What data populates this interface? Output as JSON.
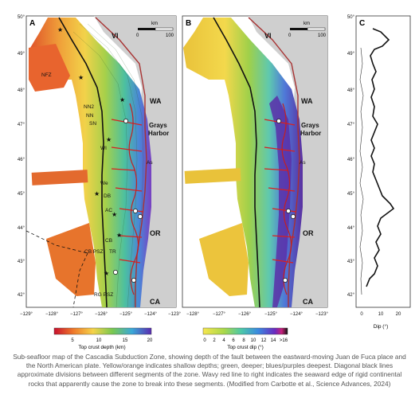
{
  "panels": {
    "a": {
      "letter": "A",
      "region_labels": [
        "VI",
        "WA",
        "Grays\nHarbor",
        "OR",
        "CA"
      ],
      "segment_labels": [
        "NFZ",
        "NN2",
        "NN",
        "SN",
        "WI",
        "As",
        "We",
        "DB",
        "AC",
        "CB",
        "TR",
        "CB PSZ",
        "RG PSZ"
      ],
      "scale": {
        "unit": "km",
        "start": "0",
        "end": "100"
      },
      "colorbar": {
        "title": "Top crust depth (km)",
        "ticks": [
          "5",
          "10",
          "15",
          "20"
        ]
      }
    },
    "b": {
      "letter": "B",
      "region_labels": [
        "VI",
        "WA",
        "Grays\nHarbor",
        "As",
        "OR",
        "CA"
      ],
      "scale": {
        "unit": "km",
        "start": "0",
        "end": "100"
      },
      "colorbar": {
        "title": "Top crust dip (°)",
        "ticks": [
          "0",
          "2",
          "4",
          "6",
          "8",
          "10",
          "12",
          "14",
          ">16"
        ]
      }
    },
    "c": {
      "letter": "C",
      "xlabel": "Dip (°)",
      "xticks": [
        "0",
        "10",
        "20"
      ]
    }
  },
  "lat_labels": [
    "50°",
    "49°",
    "48°",
    "47°",
    "46°",
    "45°",
    "44°",
    "43°",
    "42°"
  ],
  "lon_labels_a": [
    "−129°",
    "−128°",
    "−127°",
    "−126°",
    "−125°",
    "−124°",
    "−123°"
  ],
  "lon_labels_b": [
    "−128°",
    "−127°",
    "−126°",
    "−125°",
    "−124°",
    "−123°"
  ],
  "caption": "Sub-seafloor map of the Cascadia Subduction Zone, showing depth of the fault between the eastward-moving Juan de Fuca place and the North American plate. Yellow/orange indicates shallow depths; green, deeper; blues/purples deepest. Diagonal black lines approximate divisions between different segments of the zone. Wavy red line to right indicates the seaward edge of rigid continental rocks that apparently cause the zone to break into these segments. (Modified from Carbotte et al., Science Advances, 2024)",
  "colors": {
    "land": "#c9c9c9",
    "coast": "#b03a3a",
    "shallow": "#e8a23c",
    "mid": "#7bc043",
    "deep": "#6a2fb0"
  }
}
